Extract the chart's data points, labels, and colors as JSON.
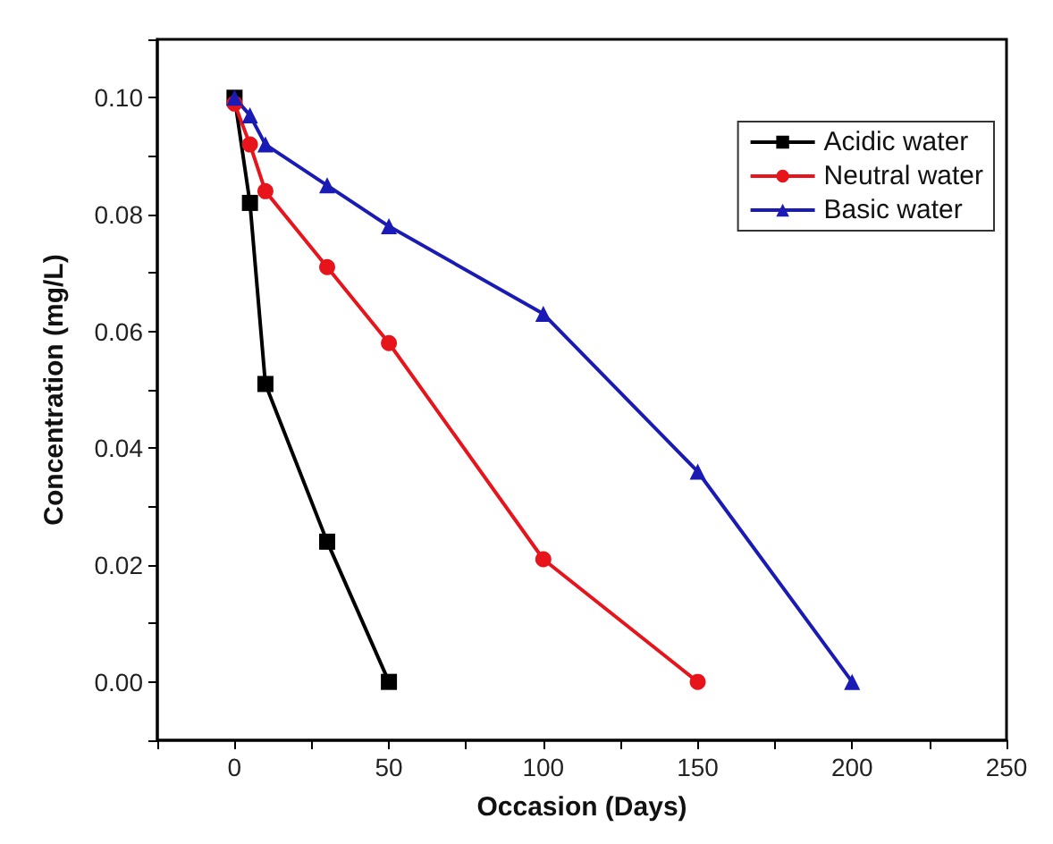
{
  "chart_data": {
    "type": "line",
    "xlabel": "Occasion (Days)",
    "ylabel": "Concentration (mg/L)",
    "xlim": [
      -25,
      250
    ],
    "xticks": [
      {
        "value": -25,
        "label": null
      },
      0,
      {
        "value": 25,
        "label": null
      },
      50,
      {
        "value": 75,
        "label": null
      },
      100,
      {
        "value": 125,
        "label": null
      },
      150,
      {
        "value": 175,
        "label": null
      },
      200,
      {
        "value": 225,
        "label": null
      },
      250
    ],
    "ylim": [
      -0.01,
      0.11
    ],
    "yticks": [
      {
        "value": -0.01,
        "label": null
      },
      {
        "value": 0,
        "label": "0.00"
      },
      {
        "value": 0.01,
        "label": null
      },
      {
        "value": 0.02,
        "label": "0.02"
      },
      {
        "value": 0.03,
        "label": null
      },
      {
        "value": 0.04,
        "label": "0.04"
      },
      {
        "value": 0.05,
        "label": null
      },
      {
        "value": 0.06,
        "label": "0.06"
      },
      {
        "value": 0.07,
        "label": null
      },
      {
        "value": 0.08,
        "label": "0.08"
      },
      {
        "value": 0.09,
        "label": null
      },
      {
        "value": 0.1,
        "label": "0.10"
      },
      {
        "value": 0.11,
        "label": null
      }
    ],
    "legend": "top right",
    "line_style": "solid",
    "series": [
      {
        "name": "Acidic water",
        "color": "#000000",
        "marker": "square",
        "x": [
          0,
          5,
          10,
          30,
          50
        ],
        "values": [
          0.1,
          0.082,
          0.051,
          0.024,
          0
        ]
      },
      {
        "name": "Neutral water",
        "color": "#e8141c",
        "marker": "circle",
        "x": [
          0,
          5,
          10,
          30,
          50,
          100,
          150
        ],
        "values": [
          0.099,
          0.092,
          0.084,
          0.071,
          0.058,
          0.021,
          0
        ]
      },
      {
        "name": "Basic water",
        "color": "#1a1ab4",
        "marker": "triangle",
        "x": [
          0,
          5,
          10,
          30,
          50,
          100,
          150,
          200
        ],
        "values": [
          0.1,
          0.097,
          0.092,
          0.085,
          0.078,
          0.063,
          0.036,
          0
        ]
      }
    ]
  }
}
